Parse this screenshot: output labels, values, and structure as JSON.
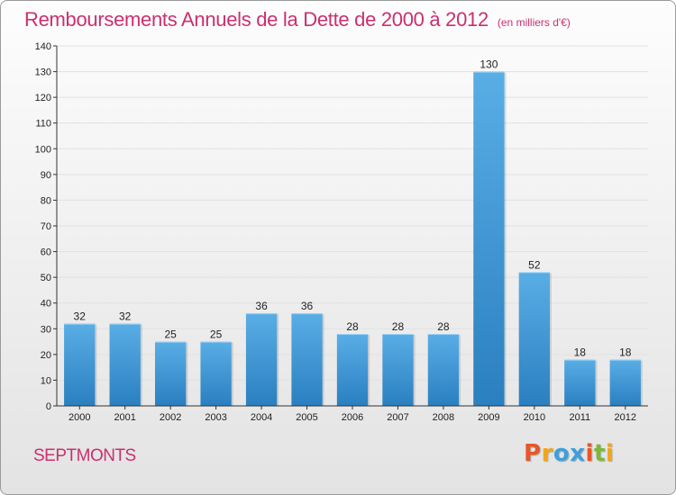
{
  "header": {
    "title": "Remboursements Annuels de la Dette de 2000 à 2012",
    "unit": "(en milliers d'€)"
  },
  "footer": {
    "commune": "SEPTMONTS",
    "logo": "Proxiti",
    "logo_colors": [
      "#e8562a",
      "#f0a61c",
      "#3f9fd9",
      "#3f9fd9",
      "#e8562a",
      "#7cb83a",
      "#f0a61c"
    ]
  },
  "colors": {
    "bar_light": "#5aaee6",
    "bar_dark": "#2a7fc0",
    "axis": "#333333",
    "grid": "#e1e1e1",
    "title": "#cc2f6f"
  },
  "chart_data": {
    "type": "bar",
    "title": "Remboursements Annuels de la Dette de 2000 à 2012",
    "xlabel": "",
    "ylabel": "",
    "categories": [
      "2000",
      "2001",
      "2002",
      "2003",
      "2004",
      "2005",
      "2006",
      "2007",
      "2008",
      "2009",
      "2010",
      "2011",
      "2012"
    ],
    "values": [
      32,
      32,
      25,
      25,
      36,
      36,
      28,
      28,
      28,
      130,
      52,
      18,
      18
    ],
    "ylim": [
      0,
      140
    ],
    "yticks": [
      0,
      10,
      20,
      30,
      40,
      50,
      60,
      70,
      80,
      90,
      100,
      110,
      120,
      130,
      140
    ],
    "grid": true,
    "legend": "none"
  }
}
